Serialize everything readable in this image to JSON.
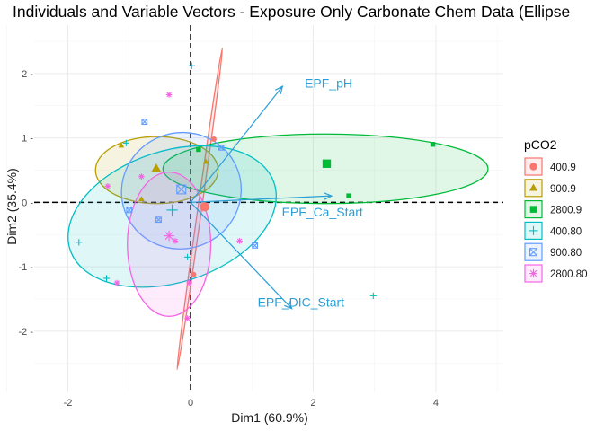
{
  "chart_data": {
    "type": "scatter",
    "title": "Individuals and Variable Vectors - Exposure Only Carbonate Chem Data (Ellipse",
    "xlabel": "Dim1 (60.9%)",
    "ylabel": "Dim2 (35.4%)",
    "xlim": [
      -2.55,
      5.1
    ],
    "ylim": [
      -2.95,
      2.75
    ],
    "x_ticks": [
      -2,
      0,
      2,
      4
    ],
    "y_ticks": [
      -2,
      -1,
      0,
      1,
      2
    ],
    "x_tick_labels": [
      "-2",
      "0",
      "2",
      "4"
    ],
    "y_tick_labels": [
      "-2 -",
      "-1 -",
      "0 -",
      "1 -",
      "2 -"
    ],
    "grid": true,
    "legend": {
      "title": "pCO2",
      "position": "right",
      "entries": [
        {
          "label": "400.9",
          "color": "#F8766D",
          "shape": "circle"
        },
        {
          "label": "900.9",
          "color": "#B79F00",
          "shape": "triangle"
        },
        {
          "label": "2800.9",
          "color": "#00BA38",
          "shape": "square"
        },
        {
          "label": "400.80",
          "color": "#00BFC4",
          "shape": "plus"
        },
        {
          "label": "900.80",
          "color": "#619CFF",
          "shape": "boxx"
        },
        {
          "label": "2800.80",
          "color": "#F564E3",
          "shape": "star"
        }
      ]
    },
    "series": [
      {
        "color": "#F8766D",
        "shape": "circle",
        "points": [
          [
            0.38,
            0.98
          ],
          [
            0.25,
            -0.08
          ],
          [
            0.05,
            -1.12
          ]
        ],
        "centroid": [
          0.23,
          -0.07
        ],
        "ellipse": {
          "cx": 0.15,
          "cy": -0.1,
          "rx": 2.65,
          "ry": 0.03,
          "angle_deg": 82
        }
      },
      {
        "color": "#B79F00",
        "shape": "triangle",
        "points": [
          [
            -1.13,
            0.88
          ],
          [
            -0.8,
            0.05
          ],
          [
            0.25,
            0.63
          ]
        ],
        "centroid": [
          -0.56,
          0.52
        ],
        "ellipse": {
          "cx": -0.55,
          "cy": 0.5,
          "rx": 1.0,
          "ry": 0.52,
          "angle_deg": 0
        }
      },
      {
        "color": "#00BA38",
        "shape": "square",
        "points": [
          [
            0.13,
            0.82
          ],
          [
            2.58,
            0.1
          ],
          [
            3.95,
            0.9
          ]
        ],
        "centroid": [
          2.22,
          0.6
        ],
        "ellipse": {
          "cx": 2.2,
          "cy": 0.52,
          "rx": 2.65,
          "ry": 0.54,
          "angle_deg": 0
        }
      },
      {
        "color": "#00BFC4",
        "shape": "plus",
        "points": [
          [
            0.02,
            2.12
          ],
          [
            -1.05,
            0.92
          ],
          [
            -0.3,
            -0.12
          ],
          [
            -0.05,
            -0.85
          ],
          [
            -1.82,
            -0.62
          ],
          [
            -1.37,
            -1.18
          ],
          [
            2.98,
            -1.45
          ]
        ],
        "centroid": [
          -0.3,
          -0.12
        ],
        "ellipse": {
          "cx": -0.3,
          "cy": -0.22,
          "rx": 1.75,
          "ry": 1.02,
          "angle_deg": 18
        }
      },
      {
        "color": "#619CFF",
        "shape": "boxx",
        "points": [
          [
            -0.75,
            1.25
          ],
          [
            0.5,
            0.85
          ],
          [
            -1.0,
            -0.12
          ],
          [
            -0.52,
            -0.27
          ],
          [
            1.05,
            -0.67
          ]
        ],
        "centroid": [
          -0.15,
          0.2
        ],
        "ellipse": {
          "cx": -0.15,
          "cy": 0.18,
          "rx": 0.98,
          "ry": 0.9,
          "angle_deg": 20
        }
      },
      {
        "color": "#F564E3",
        "shape": "star",
        "points": [
          [
            -0.35,
            1.67
          ],
          [
            -1.35,
            0.25
          ],
          [
            -0.8,
            0.4
          ],
          [
            -0.25,
            -0.6
          ],
          [
            0.8,
            -0.6
          ],
          [
            -1.2,
            -1.25
          ],
          [
            -0.02,
            -1.25
          ],
          [
            -0.05,
            -1.8
          ]
        ],
        "centroid": [
          -0.35,
          -0.52
        ],
        "ellipse": {
          "cx": -0.35,
          "cy": -0.65,
          "rx": 0.68,
          "ry": 1.12,
          "angle_deg": 0
        }
      }
    ],
    "vectors": [
      {
        "label": "EPF_pH",
        "x": 1.5,
        "y": 1.8,
        "label_x": 2.25,
        "label_y": 1.85
      },
      {
        "label": "EPF_Ca_Start",
        "x": 2.3,
        "y": 0.1,
        "label_x": 2.15,
        "label_y": -0.15
      },
      {
        "label": "EPF_DIC_Start",
        "x": 1.65,
        "y": -1.65,
        "label_x": 1.8,
        "label_y": -1.55
      }
    ],
    "vector_color": "#2a9fd6"
  }
}
